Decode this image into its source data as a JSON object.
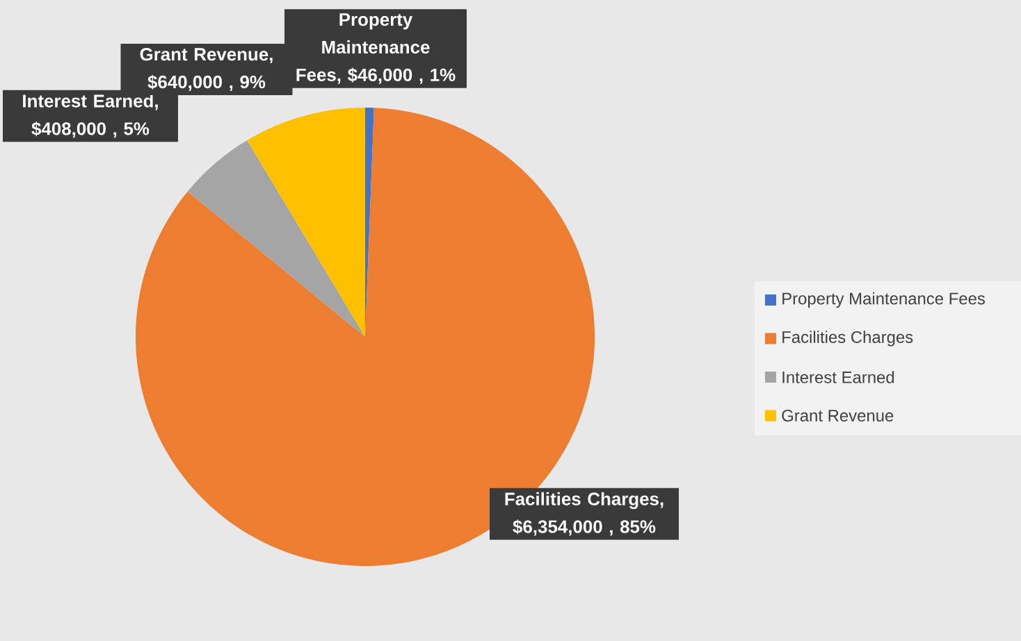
{
  "chart_data": {
    "type": "pie",
    "categories": [
      "Property Maintenance Fees",
      "Facilities Charges",
      "Interest Earned",
      "Grant Revenue"
    ],
    "values": [
      46000,
      6354000,
      408000,
      640000
    ],
    "colors": [
      "#4472c4",
      "#ed7d31",
      "#a5a5a5",
      "#ffc000"
    ],
    "value_labels": [
      "Property Maintenance Fees, $46,000 , 1%",
      "Facilities Charges, $6,354,000 , 85%",
      "Interest Earned, $408,000 , 5%",
      "Grant Revenue, $640,000 , 9%"
    ],
    "legend": "right"
  }
}
